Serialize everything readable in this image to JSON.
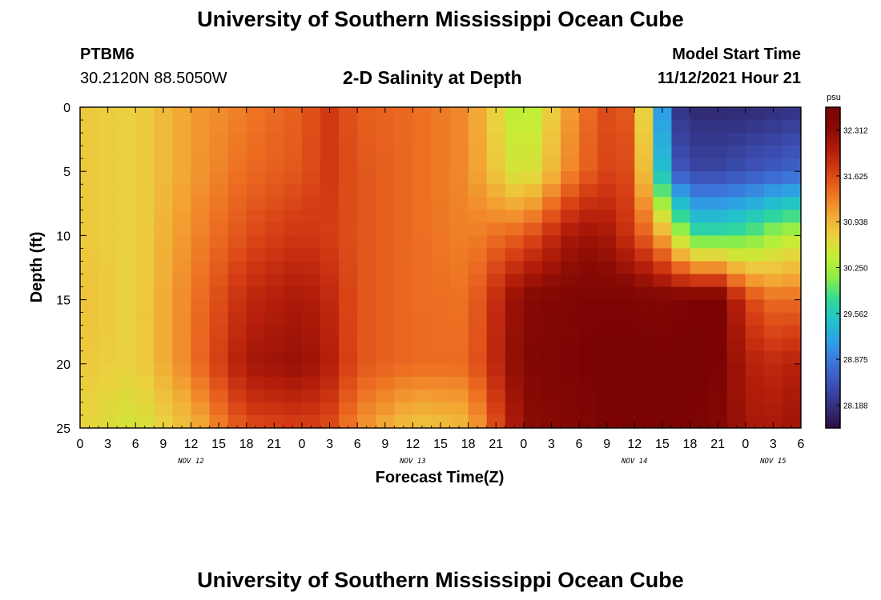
{
  "header": {
    "title": "University of Southern Mississippi Ocean Cube",
    "station_id": "PTBM6",
    "station_coords": "30.2120N  88.5050W",
    "chart_title": "2-D Salinity at Depth",
    "start_label": "Model Start Time",
    "start_value": "11/12/2021 Hour 21"
  },
  "footer": {
    "title": "University of Southern Mississippi Ocean Cube"
  },
  "chart_data": {
    "type": "heatmap",
    "title": "2-D Salinity at Depth",
    "xlabel": "Forecast Time(Z)",
    "ylabel": "Depth (ft)",
    "x_start_hour": 0,
    "x_end_hour": 78,
    "x_tick_labels": [
      "0",
      "3",
      "6",
      "9",
      "12",
      "15",
      "18",
      "21",
      "0",
      "3",
      "6",
      "9",
      "12",
      "15",
      "18",
      "21",
      "0",
      "3",
      "6",
      "9",
      "12",
      "15",
      "18",
      "21",
      "0",
      "3",
      "6"
    ],
    "date_labels": [
      {
        "label": "NOV 12",
        "hour": 12
      },
      {
        "label": "NOV 13",
        "hour": 36
      },
      {
        "label": "NOV 14",
        "hour": 60
      },
      {
        "label": "NOV 15",
        "hour": 75
      }
    ],
    "y_ticks": [
      0,
      5,
      10,
      15,
      20,
      25
    ],
    "ylim": [
      0,
      25
    ],
    "y_inverted": true,
    "colorbar": {
      "unit": "psu",
      "min": 27.844,
      "max": 32.656,
      "tick_labels": [
        "32.312",
        "31.625",
        "30.938",
        "30.250",
        "29.562",
        "28.875",
        "28.188"
      ],
      "tick_values": [
        32.312,
        31.625,
        30.938,
        30.25,
        29.562,
        28.875,
        28.188
      ],
      "colors": [
        "#2a0d3f",
        "#33307e",
        "#3c4fb4",
        "#3d72d8",
        "#2f9ee6",
        "#22c2cc",
        "#31d897",
        "#8bed4a",
        "#c5ee35",
        "#ebd03f",
        "#f3a634",
        "#ed6f22",
        "#d63f15",
        "#b21d0a",
        "#8a0b04",
        "#780303"
      ]
    },
    "times": [
      0,
      6,
      12,
      18,
      24,
      27,
      30,
      36,
      42,
      48,
      54,
      57,
      60,
      64,
      66,
      69,
      72,
      75,
      78
    ],
    "depths": [
      0,
      5,
      10,
      15,
      20,
      25
    ],
    "values": [
      [
        30.8,
        30.7,
        31.1,
        31.3,
        31.5,
        31.75,
        31.5,
        31.4,
        31.2,
        30.2,
        31.3,
        31.6,
        31.5,
        28.3,
        28.1,
        28.1,
        28.1,
        28.15,
        28.2
      ],
      [
        30.8,
        30.7,
        31.1,
        31.4,
        31.55,
        31.75,
        31.55,
        31.4,
        31.2,
        30.4,
        31.4,
        31.65,
        31.6,
        28.7,
        28.4,
        28.4,
        28.5,
        28.6,
        28.7
      ],
      [
        30.8,
        30.7,
        31.2,
        31.6,
        31.8,
        31.7,
        31.55,
        31.4,
        31.25,
        31.5,
        32.2,
        32.1,
        31.7,
        30.8,
        29.8,
        29.8,
        29.9,
        30.2,
        30.4
      ],
      [
        30.85,
        30.7,
        31.3,
        31.9,
        32.1,
        31.9,
        31.55,
        31.4,
        31.35,
        32.4,
        32.55,
        32.55,
        32.55,
        32.5,
        32.6,
        32.6,
        31.7,
        31.4,
        31.4
      ],
      [
        30.8,
        30.7,
        31.3,
        32.1,
        32.25,
        32.0,
        31.55,
        31.4,
        31.4,
        32.45,
        32.6,
        32.65,
        32.65,
        32.65,
        32.65,
        32.6,
        32.0,
        31.9,
        32.0
      ],
      [
        30.7,
        30.5,
        30.9,
        31.6,
        31.7,
        31.6,
        31.2,
        30.8,
        30.9,
        32.3,
        32.5,
        32.6,
        32.6,
        32.6,
        32.6,
        32.5,
        32.1,
        32.1,
        32.2
      ]
    ]
  }
}
